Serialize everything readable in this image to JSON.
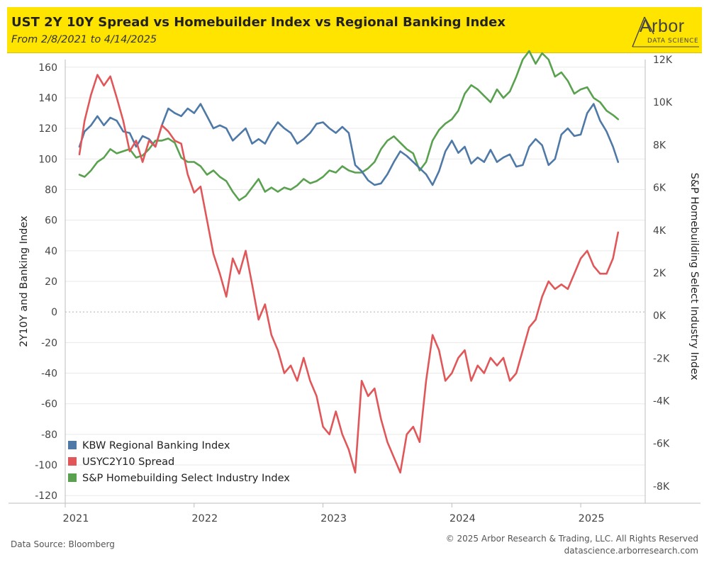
{
  "header": {
    "title": "UST 2Y 10Y Spread vs Homebuilder Index vs Regional Banking Index",
    "subtitle": "From 2/8/2021 to 4/14/2025",
    "logo_word": "Arbor",
    "logo_sub": "DATA SCIENCE"
  },
  "footer": {
    "source": "Data Source: Bloomberg",
    "copyright": "© 2025 Arbor Research & Trading, LLC. All Rights Reserved",
    "website": "datascience.arborresearch.com"
  },
  "colors": {
    "banner": "#FFE400",
    "kbw": "#4E79A7",
    "spread": "#E15759",
    "homebuilding": "#59A14F",
    "grid": "#e9e9e9",
    "zero_line": "#b0b0b0"
  },
  "chart_data": {
    "type": "line",
    "title": "UST 2Y 10Y Spread vs Homebuilder Index vs Regional Banking Index",
    "subtitle": "From 2/8/2021 to 4/14/2025",
    "ylabel": "2Y10Y and Banking Index",
    "y2label": "S&P Homebuilding Select Industry Index",
    "ylim": [
      -125,
      165
    ],
    "y2lim": [
      -8800,
      12000
    ],
    "yticks": [
      160,
      140,
      120,
      100,
      80,
      60,
      40,
      20,
      0,
      -20,
      -40,
      -60,
      -80,
      -100,
      -120
    ],
    "y2ticks": [
      "12K",
      "10K",
      "8K",
      "6K",
      "4K",
      "2K",
      "0K",
      "-2K",
      "-4K",
      "-6K",
      "-8K"
    ],
    "xticks": [
      "2021",
      "2022",
      "2023",
      "2024",
      "2025"
    ],
    "xlim": [
      2021.0,
      2025.5
    ],
    "grid": "horizontal",
    "legend_position": "bottom-left",
    "series": [
      {
        "name": "KBW Regional Banking Index",
        "axis": "left",
        "x": [
          2021.11,
          2021.15,
          2021.2,
          2021.25,
          2021.3,
          2021.35,
          2021.4,
          2021.45,
          2021.5,
          2021.55,
          2021.6,
          2021.65,
          2021.7,
          2021.75,
          2021.8,
          2021.85,
          2021.9,
          2021.95,
          2022.0,
          2022.05,
          2022.1,
          2022.15,
          2022.2,
          2022.25,
          2022.3,
          2022.35,
          2022.4,
          2022.45,
          2022.5,
          2022.55,
          2022.6,
          2022.65,
          2022.7,
          2022.75,
          2022.8,
          2022.85,
          2022.9,
          2022.95,
          2023.0,
          2023.05,
          2023.1,
          2023.15,
          2023.2,
          2023.25,
          2023.3,
          2023.35,
          2023.4,
          2023.45,
          2023.5,
          2023.55,
          2023.6,
          2023.65,
          2023.7,
          2023.75,
          2023.8,
          2023.85,
          2023.9,
          2023.95,
          2024.0,
          2024.05,
          2024.1,
          2024.15,
          2024.2,
          2024.25,
          2024.3,
          2024.35,
          2024.4,
          2024.45,
          2024.5,
          2024.55,
          2024.6,
          2024.65,
          2024.7,
          2024.75,
          2024.8,
          2024.85,
          2024.9,
          2024.95,
          2025.0,
          2025.05,
          2025.1,
          2025.15,
          2025.2,
          2025.25,
          2025.29
        ],
        "values": [
          108,
          118,
          122,
          128,
          122,
          127,
          125,
          118,
          117,
          108,
          115,
          113,
          108,
          122,
          133,
          130,
          128,
          133,
          130,
          136,
          128,
          120,
          122,
          120,
          112,
          116,
          120,
          110,
          113,
          110,
          118,
          124,
          120,
          117,
          110,
          113,
          117,
          123,
          124,
          120,
          117,
          121,
          117,
          96,
          92,
          86,
          83,
          84,
          90,
          98,
          105,
          102,
          98,
          94,
          90,
          83,
          92,
          105,
          112,
          104,
          108,
          97,
          101,
          98,
          106,
          98,
          101,
          103,
          95,
          96,
          108,
          113,
          109,
          96,
          100,
          116,
          120,
          115,
          116,
          130,
          136,
          125,
          118,
          108,
          98
        ]
      },
      {
        "name": "USYC2Y10 Spread",
        "axis": "left",
        "x": [
          2021.11,
          2021.15,
          2021.2,
          2021.25,
          2021.3,
          2021.35,
          2021.4,
          2021.45,
          2021.5,
          2021.55,
          2021.6,
          2021.65,
          2021.7,
          2021.75,
          2021.8,
          2021.85,
          2021.9,
          2021.95,
          2022.0,
          2022.05,
          2022.1,
          2022.15,
          2022.2,
          2022.25,
          2022.3,
          2022.35,
          2022.4,
          2022.45,
          2022.5,
          2022.55,
          2022.6,
          2022.65,
          2022.7,
          2022.75,
          2022.8,
          2022.85,
          2022.9,
          2022.95,
          2023.0,
          2023.05,
          2023.1,
          2023.15,
          2023.2,
          2023.25,
          2023.3,
          2023.35,
          2023.4,
          2023.45,
          2023.5,
          2023.55,
          2023.6,
          2023.65,
          2023.7,
          2023.75,
          2023.8,
          2023.85,
          2023.9,
          2023.95,
          2024.0,
          2024.05,
          2024.1,
          2024.15,
          2024.2,
          2024.25,
          2024.3,
          2024.35,
          2024.4,
          2024.45,
          2024.5,
          2024.55,
          2024.6,
          2024.65,
          2024.7,
          2024.75,
          2024.8,
          2024.85,
          2024.9,
          2024.95,
          2025.0,
          2025.05,
          2025.1,
          2025.15,
          2025.2,
          2025.25,
          2025.29
        ],
        "values": [
          103,
          125,
          142,
          155,
          148,
          154,
          140,
          125,
          105,
          112,
          98,
          112,
          108,
          122,
          118,
          112,
          110,
          90,
          78,
          82,
          60,
          38,
          25,
          10,
          35,
          25,
          40,
          18,
          -5,
          5,
          -15,
          -25,
          -40,
          -35,
          -45,
          -30,
          -45,
          -55,
          -75,
          -80,
          -65,
          -80,
          -90,
          -105,
          -45,
          -55,
          -50,
          -70,
          -85,
          -95,
          -105,
          -80,
          -75,
          -85,
          -45,
          -15,
          -25,
          -45,
          -40,
          -30,
          -25,
          -45,
          -35,
          -40,
          -30,
          -35,
          -30,
          -45,
          -40,
          -25,
          -10,
          -5,
          10,
          20,
          15,
          18,
          15,
          25,
          35,
          40,
          30,
          25,
          25,
          35,
          52
        ]
      },
      {
        "name": "S&P Homebuilding Select Industry Index",
        "axis": "right",
        "x": [
          2021.11,
          2021.15,
          2021.2,
          2021.25,
          2021.3,
          2021.35,
          2021.4,
          2021.45,
          2021.5,
          2021.55,
          2021.6,
          2021.65,
          2021.7,
          2021.75,
          2021.8,
          2021.85,
          2021.9,
          2021.95,
          2022.0,
          2022.05,
          2022.1,
          2022.15,
          2022.2,
          2022.25,
          2022.3,
          2022.35,
          2022.4,
          2022.45,
          2022.5,
          2022.55,
          2022.6,
          2022.65,
          2022.7,
          2022.75,
          2022.8,
          2022.85,
          2022.9,
          2022.95,
          2023.0,
          2023.05,
          2023.1,
          2023.15,
          2023.2,
          2023.25,
          2023.3,
          2023.35,
          2023.4,
          2023.45,
          2023.5,
          2023.55,
          2023.6,
          2023.65,
          2023.7,
          2023.75,
          2023.8,
          2023.85,
          2023.9,
          2023.95,
          2024.0,
          2024.05,
          2024.1,
          2024.15,
          2024.2,
          2024.25,
          2024.3,
          2024.35,
          2024.4,
          2024.45,
          2024.5,
          2024.55,
          2024.6,
          2024.65,
          2024.7,
          2024.75,
          2024.8,
          2024.85,
          2024.9,
          2024.95,
          2025.0,
          2025.05,
          2025.1,
          2025.15,
          2025.2,
          2025.25,
          2025.29
        ],
        "values": [
          6600,
          6500,
          6800,
          7200,
          7400,
          7800,
          7600,
          7700,
          7800,
          7400,
          7500,
          7800,
          8200,
          8200,
          8300,
          8100,
          7400,
          7200,
          7200,
          7000,
          6600,
          6800,
          6500,
          6300,
          5800,
          5400,
          5600,
          6000,
          6400,
          5800,
          6000,
          5800,
          6000,
          5900,
          6100,
          6400,
          6200,
          6300,
          6500,
          6800,
          6700,
          7000,
          6800,
          6700,
          6700,
          6900,
          7200,
          7800,
          8200,
          8400,
          8100,
          7800,
          7600,
          6800,
          7200,
          8200,
          8700,
          9000,
          9200,
          9600,
          10400,
          10800,
          10600,
          10300,
          10000,
          10600,
          10200,
          10500,
          11200,
          12000,
          12400,
          11800,
          12300,
          12000,
          11200,
          11400,
          11000,
          10400,
          10600,
          10700,
          10200,
          10000,
          9600,
          9400,
          9200
        ]
      }
    ]
  }
}
